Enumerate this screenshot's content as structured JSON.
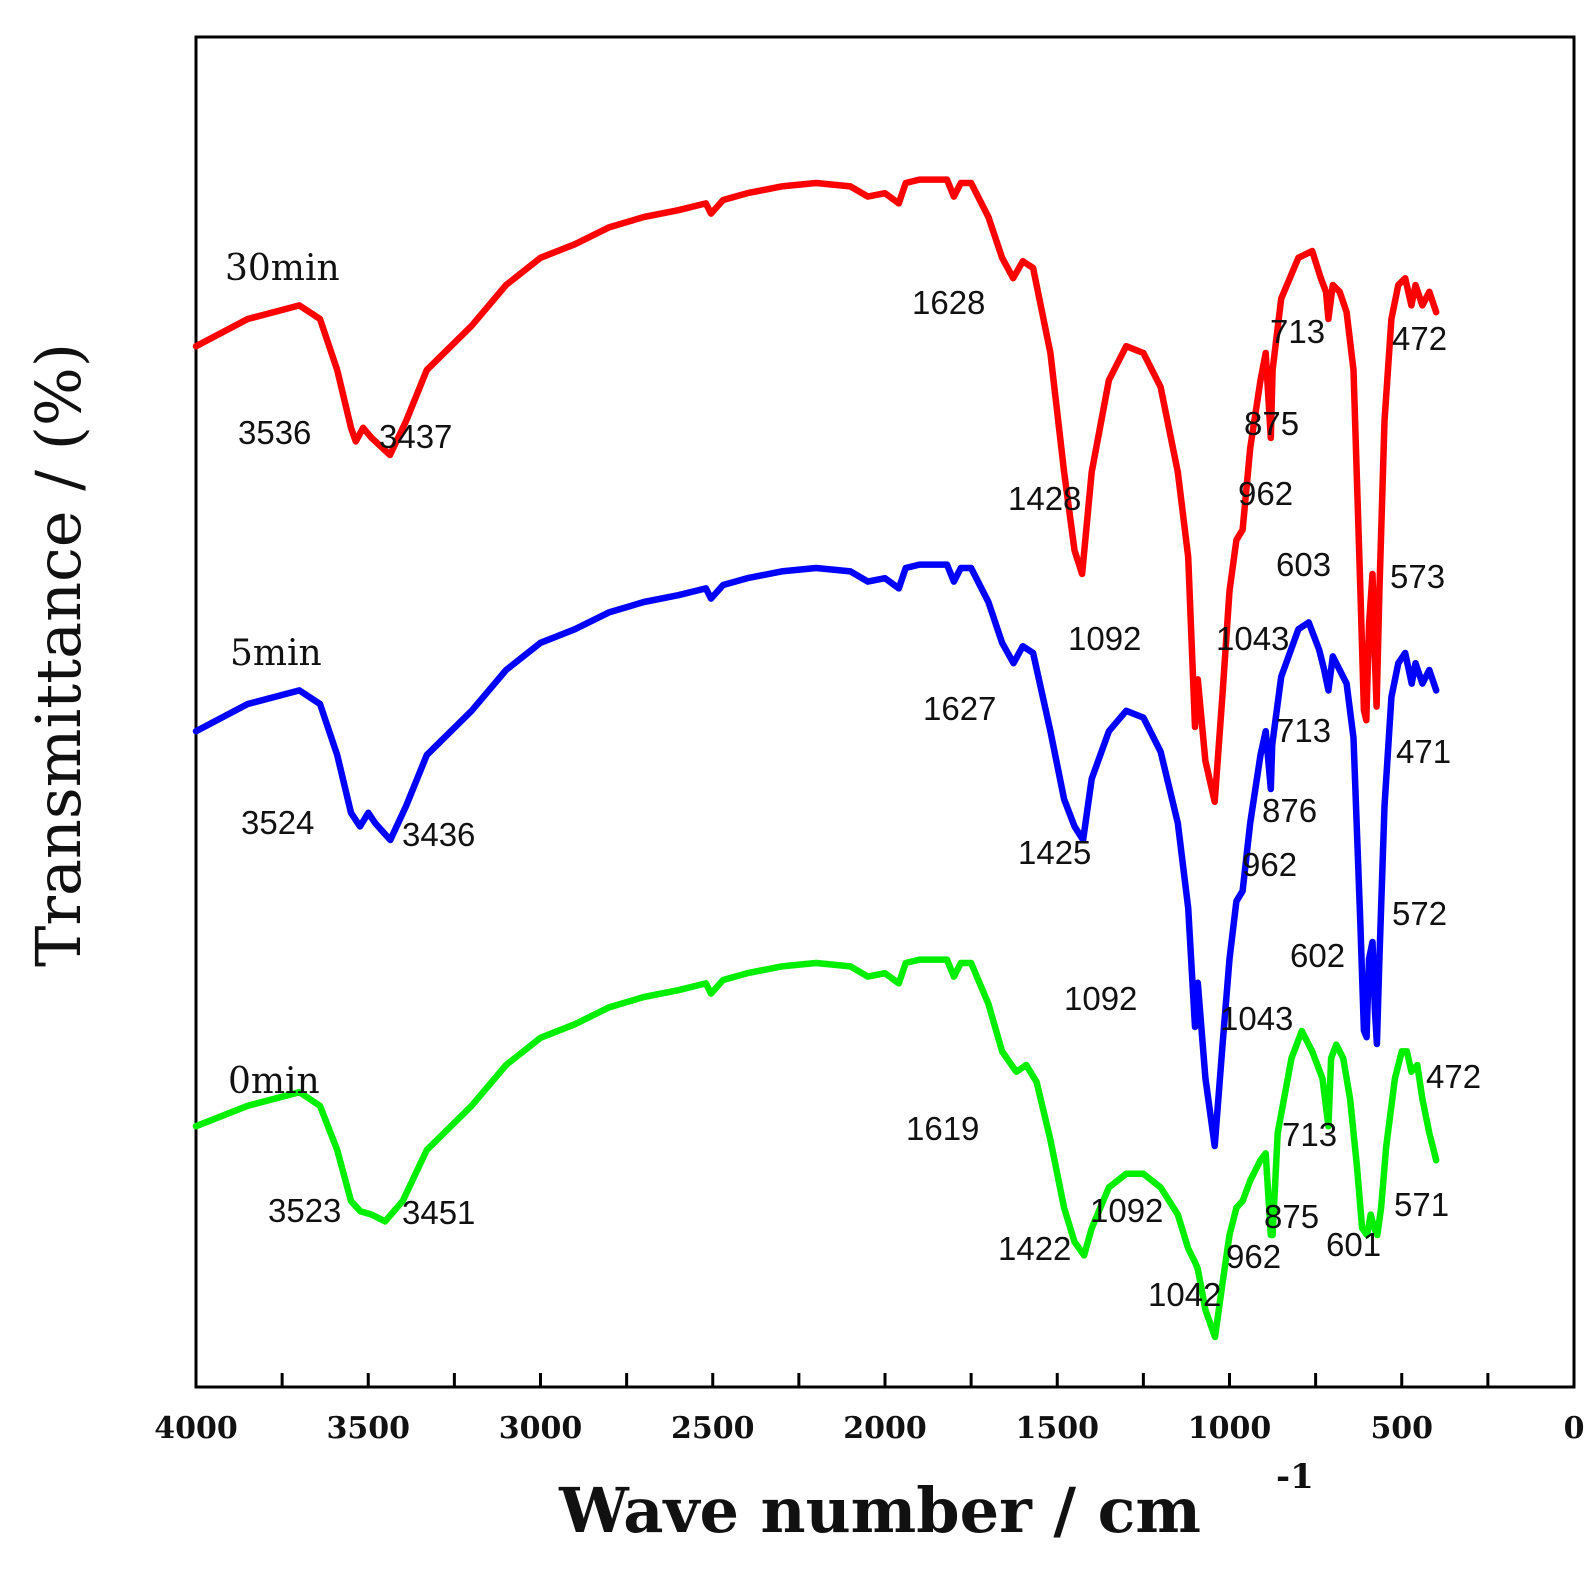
{
  "chart_data": {
    "type": "line",
    "title": "",
    "xlabel": "Wave number / cm",
    "xlabel_superscript": "-1",
    "ylabel": "Transmittance / (%)",
    "xlim": [
      4000,
      0
    ],
    "x_ticks": [
      4000,
      3500,
      3000,
      2500,
      2000,
      1500,
      1000,
      500,
      0
    ],
    "y_ticks": [],
    "grid": false,
    "series": [
      {
        "name": "30min",
        "color": "#ff0000",
        "offset": 2,
        "points": [
          [
            4000,
            0.62
          ],
          [
            3850,
            0.7
          ],
          [
            3700,
            0.74
          ],
          [
            3640,
            0.7
          ],
          [
            3590,
            0.55
          ],
          [
            3550,
            0.38
          ],
          [
            3536,
            0.34
          ],
          [
            3515,
            0.38
          ],
          [
            3490,
            0.35
          ],
          [
            3437,
            0.3
          ],
          [
            3390,
            0.4
          ],
          [
            3330,
            0.55
          ],
          [
            3200,
            0.68
          ],
          [
            3100,
            0.8
          ],
          [
            3000,
            0.88
          ],
          [
            2900,
            0.92
          ],
          [
            2800,
            0.97
          ],
          [
            2700,
            1.0
          ],
          [
            2600,
            1.02
          ],
          [
            2520,
            1.04
          ],
          [
            2505,
            1.01
          ],
          [
            2470,
            1.05
          ],
          [
            2400,
            1.07
          ],
          [
            2300,
            1.09
          ],
          [
            2200,
            1.1
          ],
          [
            2100,
            1.09
          ],
          [
            2050,
            1.06
          ],
          [
            2000,
            1.07
          ],
          [
            1960,
            1.04
          ],
          [
            1940,
            1.1
          ],
          [
            1900,
            1.11
          ],
          [
            1820,
            1.11
          ],
          [
            1800,
            1.06
          ],
          [
            1780,
            1.1
          ],
          [
            1750,
            1.1
          ],
          [
            1700,
            1.0
          ],
          [
            1660,
            0.88
          ],
          [
            1628,
            0.82
          ],
          [
            1600,
            0.87
          ],
          [
            1570,
            0.85
          ],
          [
            1520,
            0.6
          ],
          [
            1480,
            0.25
          ],
          [
            1450,
            0.02
          ],
          [
            1428,
            -0.05
          ],
          [
            1400,
            0.25
          ],
          [
            1350,
            0.52
          ],
          [
            1300,
            0.62
          ],
          [
            1250,
            0.6
          ],
          [
            1200,
            0.5
          ],
          [
            1150,
            0.25
          ],
          [
            1120,
            0.0
          ],
          [
            1100,
            -0.5
          ],
          [
            1092,
            -0.36
          ],
          [
            1070,
            -0.6
          ],
          [
            1043,
            -0.72
          ],
          [
            1020,
            -0.4
          ],
          [
            1000,
            -0.1
          ],
          [
            980,
            0.05
          ],
          [
            962,
            0.08
          ],
          [
            940,
            0.32
          ],
          [
            910,
            0.52
          ],
          [
            895,
            0.6
          ],
          [
            880,
            0.35
          ],
          [
            875,
            0.55
          ],
          [
            850,
            0.76
          ],
          [
            800,
            0.88
          ],
          [
            760,
            0.9
          ],
          [
            735,
            0.82
          ],
          [
            720,
            0.78
          ],
          [
            713,
            0.7
          ],
          [
            700,
            0.8
          ],
          [
            680,
            0.78
          ],
          [
            660,
            0.72
          ],
          [
            640,
            0.55
          ],
          [
            620,
            -0.1
          ],
          [
            610,
            -0.45
          ],
          [
            603,
            -0.48
          ],
          [
            595,
            -0.2
          ],
          [
            585,
            -0.05
          ],
          [
            578,
            -0.3
          ],
          [
            573,
            -0.44
          ],
          [
            565,
            -0.1
          ],
          [
            550,
            0.4
          ],
          [
            530,
            0.7
          ],
          [
            510,
            0.8
          ],
          [
            490,
            0.82
          ],
          [
            472,
            0.74
          ],
          [
            460,
            0.8
          ],
          [
            440,
            0.74
          ],
          [
            420,
            0.78
          ],
          [
            400,
            0.72
          ]
        ],
        "peak_labels": [
          "3536",
          "3437",
          "1628",
          "1428",
          "1092",
          "1043",
          "962",
          "875",
          "713",
          "603",
          "573",
          "472"
        ]
      },
      {
        "name": "5min",
        "color": "#0000ff",
        "offset": 1,
        "points": [
          [
            4000,
            0.62
          ],
          [
            3850,
            0.7
          ],
          [
            3700,
            0.74
          ],
          [
            3640,
            0.7
          ],
          [
            3590,
            0.55
          ],
          [
            3550,
            0.38
          ],
          [
            3524,
            0.34
          ],
          [
            3500,
            0.38
          ],
          [
            3480,
            0.35
          ],
          [
            3436,
            0.3
          ],
          [
            3390,
            0.4
          ],
          [
            3330,
            0.55
          ],
          [
            3200,
            0.68
          ],
          [
            3100,
            0.8
          ],
          [
            3000,
            0.88
          ],
          [
            2900,
            0.92
          ],
          [
            2800,
            0.97
          ],
          [
            2700,
            1.0
          ],
          [
            2600,
            1.02
          ],
          [
            2520,
            1.04
          ],
          [
            2505,
            1.01
          ],
          [
            2470,
            1.05
          ],
          [
            2400,
            1.07
          ],
          [
            2300,
            1.09
          ],
          [
            2200,
            1.1
          ],
          [
            2100,
            1.09
          ],
          [
            2050,
            1.06
          ],
          [
            2000,
            1.07
          ],
          [
            1960,
            1.04
          ],
          [
            1940,
            1.1
          ],
          [
            1900,
            1.11
          ],
          [
            1820,
            1.11
          ],
          [
            1800,
            1.06
          ],
          [
            1780,
            1.1
          ],
          [
            1750,
            1.1
          ],
          [
            1700,
            1.0
          ],
          [
            1660,
            0.88
          ],
          [
            1627,
            0.82
          ],
          [
            1600,
            0.87
          ],
          [
            1570,
            0.85
          ],
          [
            1520,
            0.62
          ],
          [
            1480,
            0.42
          ],
          [
            1450,
            0.34
          ],
          [
            1425,
            0.3
          ],
          [
            1400,
            0.48
          ],
          [
            1350,
            0.62
          ],
          [
            1300,
            0.68
          ],
          [
            1250,
            0.66
          ],
          [
            1200,
            0.56
          ],
          [
            1150,
            0.35
          ],
          [
            1120,
            0.1
          ],
          [
            1100,
            -0.25
          ],
          [
            1092,
            -0.12
          ],
          [
            1070,
            -0.4
          ],
          [
            1043,
            -0.6
          ],
          [
            1020,
            -0.3
          ],
          [
            1000,
            -0.05
          ],
          [
            980,
            0.12
          ],
          [
            962,
            0.15
          ],
          [
            940,
            0.35
          ],
          [
            910,
            0.55
          ],
          [
            895,
            0.62
          ],
          [
            880,
            0.45
          ],
          [
            876,
            0.58
          ],
          [
            850,
            0.78
          ],
          [
            800,
            0.92
          ],
          [
            770,
            0.94
          ],
          [
            740,
            0.86
          ],
          [
            725,
            0.8
          ],
          [
            713,
            0.74
          ],
          [
            700,
            0.84
          ],
          [
            680,
            0.8
          ],
          [
            660,
            0.76
          ],
          [
            640,
            0.6
          ],
          [
            620,
            0.05
          ],
          [
            610,
            -0.26
          ],
          [
            602,
            -0.28
          ],
          [
            595,
            -0.05
          ],
          [
            585,
            0.0
          ],
          [
            578,
            -0.2
          ],
          [
            572,
            -0.3
          ],
          [
            565,
            -0.05
          ],
          [
            550,
            0.4
          ],
          [
            530,
            0.72
          ],
          [
            510,
            0.82
          ],
          [
            490,
            0.85
          ],
          [
            471,
            0.76
          ],
          [
            460,
            0.82
          ],
          [
            440,
            0.76
          ],
          [
            420,
            0.8
          ],
          [
            400,
            0.74
          ]
        ],
        "peak_labels": [
          "3524",
          "3436",
          "1627",
          "1425",
          "1092",
          "1043",
          "962",
          "876",
          "713",
          "602",
          "572",
          "471"
        ]
      },
      {
        "name": "0min",
        "color": "#00ee00",
        "offset": 0,
        "points": [
          [
            4000,
            0.62
          ],
          [
            3850,
            0.68
          ],
          [
            3700,
            0.72
          ],
          [
            3640,
            0.68
          ],
          [
            3590,
            0.55
          ],
          [
            3550,
            0.4
          ],
          [
            3523,
            0.37
          ],
          [
            3490,
            0.36
          ],
          [
            3451,
            0.34
          ],
          [
            3400,
            0.4
          ],
          [
            3330,
            0.55
          ],
          [
            3200,
            0.68
          ],
          [
            3100,
            0.8
          ],
          [
            3000,
            0.88
          ],
          [
            2900,
            0.92
          ],
          [
            2800,
            0.97
          ],
          [
            2700,
            1.0
          ],
          [
            2600,
            1.02
          ],
          [
            2520,
            1.04
          ],
          [
            2505,
            1.01
          ],
          [
            2470,
            1.05
          ],
          [
            2400,
            1.07
          ],
          [
            2300,
            1.09
          ],
          [
            2200,
            1.1
          ],
          [
            2100,
            1.09
          ],
          [
            2050,
            1.06
          ],
          [
            2000,
            1.07
          ],
          [
            1960,
            1.04
          ],
          [
            1940,
            1.1
          ],
          [
            1900,
            1.11
          ],
          [
            1820,
            1.11
          ],
          [
            1800,
            1.06
          ],
          [
            1780,
            1.1
          ],
          [
            1750,
            1.1
          ],
          [
            1700,
            0.98
          ],
          [
            1660,
            0.84
          ],
          [
            1619,
            0.78
          ],
          [
            1590,
            0.8
          ],
          [
            1560,
            0.75
          ],
          [
            1520,
            0.58
          ],
          [
            1480,
            0.38
          ],
          [
            1450,
            0.28
          ],
          [
            1422,
            0.24
          ],
          [
            1400,
            0.32
          ],
          [
            1350,
            0.44
          ],
          [
            1300,
            0.48
          ],
          [
            1250,
            0.48
          ],
          [
            1200,
            0.44
          ],
          [
            1150,
            0.36
          ],
          [
            1120,
            0.26
          ],
          [
            1100,
            0.22
          ],
          [
            1092,
            0.2
          ],
          [
            1070,
            0.08
          ],
          [
            1042,
            0.0
          ],
          [
            1020,
            0.16
          ],
          [
            1000,
            0.3
          ],
          [
            980,
            0.38
          ],
          [
            962,
            0.4
          ],
          [
            940,
            0.46
          ],
          [
            910,
            0.52
          ],
          [
            895,
            0.54
          ],
          [
            880,
            0.3
          ],
          [
            875,
            0.3
          ],
          [
            860,
            0.6
          ],
          [
            820,
            0.82
          ],
          [
            790,
            0.9
          ],
          [
            760,
            0.84
          ],
          [
            730,
            0.76
          ],
          [
            713,
            0.62
          ],
          [
            705,
            0.82
          ],
          [
            690,
            0.86
          ],
          [
            670,
            0.82
          ],
          [
            650,
            0.7
          ],
          [
            630,
            0.5
          ],
          [
            615,
            0.32
          ],
          [
            601,
            0.3
          ],
          [
            590,
            0.36
          ],
          [
            580,
            0.32
          ],
          [
            571,
            0.3
          ],
          [
            560,
            0.38
          ],
          [
            545,
            0.56
          ],
          [
            520,
            0.76
          ],
          [
            500,
            0.84
          ],
          [
            485,
            0.84
          ],
          [
            472,
            0.78
          ],
          [
            455,
            0.8
          ],
          [
            440,
            0.7
          ],
          [
            420,
            0.6
          ],
          [
            400,
            0.52
          ]
        ],
        "peak_labels": [
          "3523",
          "3451",
          "1619",
          "1422",
          "1092",
          "1042",
          "962",
          "875",
          "713",
          "601",
          "571",
          "472"
        ]
      }
    ]
  }
}
